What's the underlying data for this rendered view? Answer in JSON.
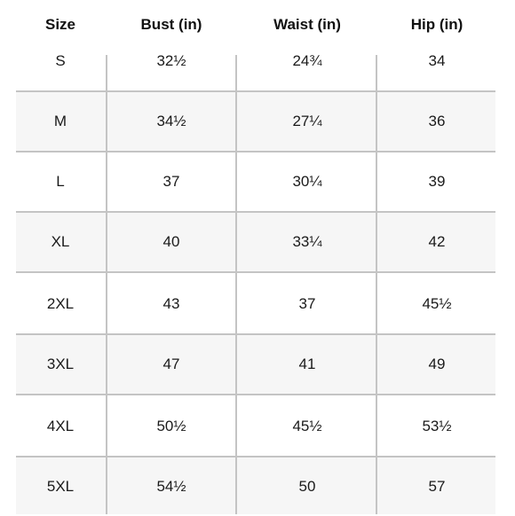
{
  "columns": [
    "Size",
    "Bust (in)",
    "Waist (in)",
    "Hip (in)"
  ],
  "rows": [
    [
      "S",
      "32½",
      "24¾",
      "34"
    ],
    [
      "M",
      "34½",
      "27¼",
      "36"
    ],
    [
      "L",
      "37",
      "30¼",
      "39"
    ],
    [
      "XL",
      "40",
      "33¼",
      "42"
    ],
    [
      "2XL",
      "43",
      "37",
      "45½"
    ],
    [
      "3XL",
      "47",
      "41",
      "49"
    ],
    [
      "4XL",
      "50½",
      "45½",
      "53½"
    ],
    [
      "5XL",
      "54½",
      "50",
      "57"
    ]
  ],
  "colors": {
    "grid_line": "#c4c4c4",
    "alt_row_background": "#f6f6f6",
    "text": "#111111"
  }
}
